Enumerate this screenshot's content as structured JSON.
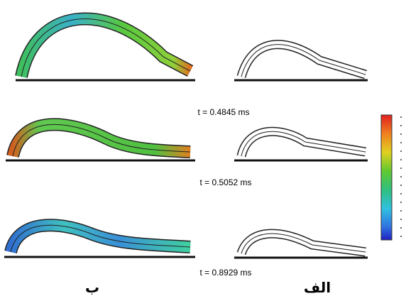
{
  "frames": [
    {
      "time_label": "t = 0.4845 ms"
    },
    {
      "time_label": "t = 0.5052 ms"
    },
    {
      "time_label": "t = 0.8929 ms"
    }
  ],
  "panel_labels": {
    "left": "ب",
    "right": "الف"
  }
}
